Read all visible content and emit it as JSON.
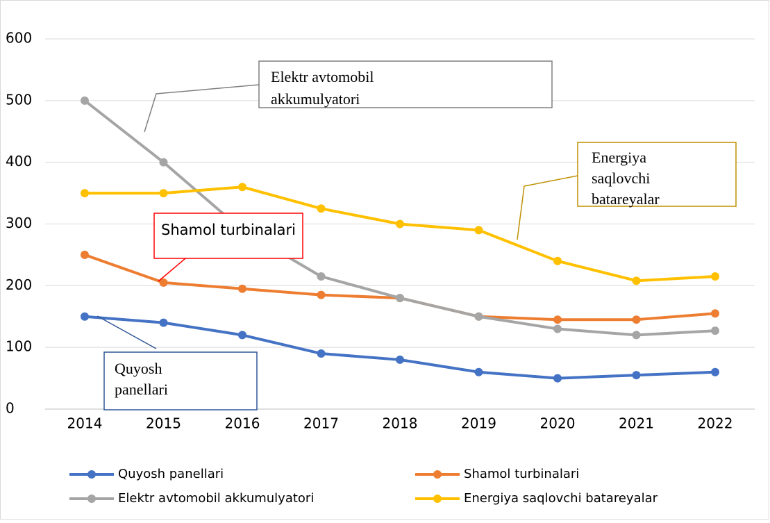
{
  "chart_data": {
    "type": "line",
    "categories": [
      "2014",
      "2015",
      "2016",
      "2017",
      "2018",
      "2019",
      "2020",
      "2021",
      "2022"
    ],
    "series": [
      {
        "name": "Quyosh panellari",
        "color": "#4472c4",
        "values": [
          150,
          140,
          120,
          90,
          80,
          60,
          50,
          55,
          60
        ]
      },
      {
        "name": "Shamol turbinalari",
        "color": "#ed7d31",
        "values": [
          250,
          205,
          195,
          185,
          180,
          150,
          145,
          145,
          155
        ]
      },
      {
        "name": "Elektr avtomobil akkumulyatori",
        "color": "#a5a5a5",
        "values": [
          500,
          400,
          290,
          215,
          180,
          150,
          130,
          120,
          127
        ]
      },
      {
        "name": "Energiya saqlovchi batareyalar",
        "color": "#ffc000",
        "values": [
          350,
          350,
          360,
          325,
          300,
          290,
          240,
          208,
          215
        ]
      }
    ],
    "ylim": [
      0,
      600
    ],
    "yticks": [
      0,
      100,
      200,
      300,
      400,
      500,
      600
    ],
    "grid": true,
    "legend": "bottom",
    "annotations": [
      {
        "text": [
          "Elektr avtomobil",
          "akkumulyatori"
        ]
      },
      {
        "text": [
          "Energiya",
          "saqlovchi",
          "batareyalar"
        ]
      },
      {
        "text": [
          "Shamol turbinalari"
        ]
      },
      {
        "text": [
          "Quyosh",
          "panellari"
        ]
      }
    ]
  }
}
